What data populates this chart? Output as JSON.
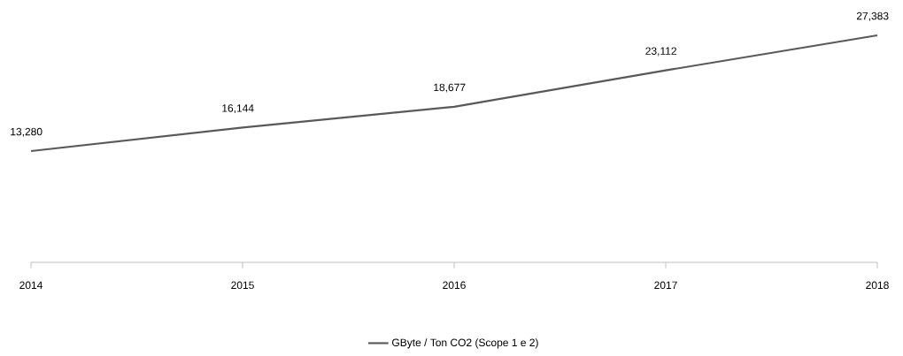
{
  "chart_data": {
    "type": "line",
    "x": [
      2014,
      2015,
      2016,
      2017,
      2018
    ],
    "series": [
      {
        "name": "GByte / Ton CO2 (Scope 1 e 2)",
        "color": "#595959",
        "values": [
          13280,
          16144,
          18677,
          23112,
          27383
        ],
        "value_labels": [
          "13,280",
          "16,144",
          "18,677",
          "23,112",
          "27,383"
        ]
      }
    ],
    "xlim": [
      2014,
      2018
    ],
    "xticks": [
      2014,
      2015,
      2016,
      2017,
      2018
    ],
    "tick_labels": "x",
    "legend": "bottom"
  }
}
